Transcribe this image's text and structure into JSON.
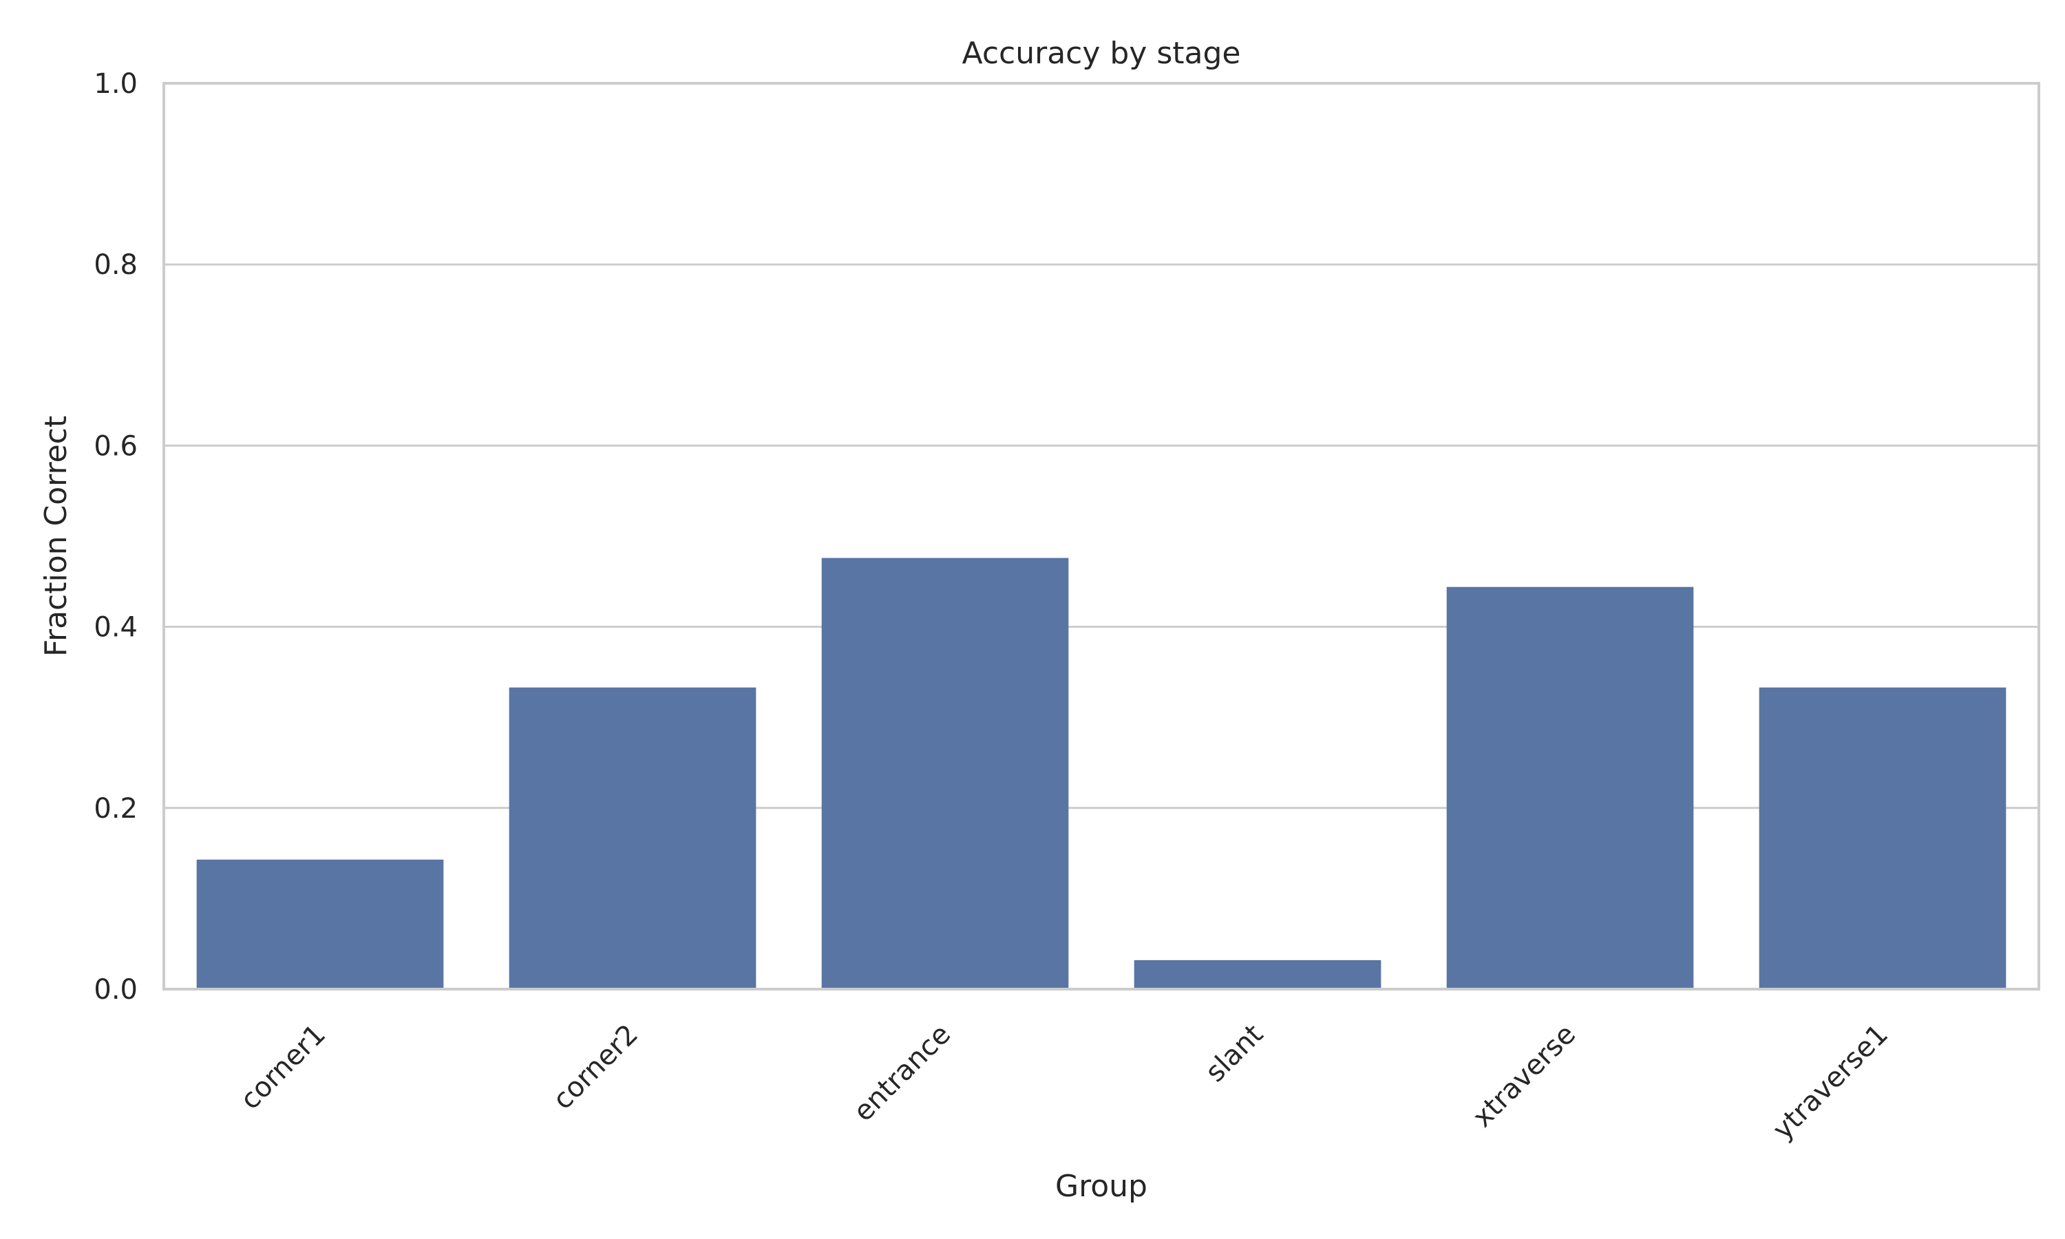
{
  "chart_data": {
    "type": "bar",
    "title": "Accuracy by stage",
    "xlabel": "Group",
    "ylabel": "Fraction Correct",
    "categories": [
      "corner1",
      "corner2",
      "entrance",
      "slant",
      "xtraverse",
      "ytraverse1"
    ],
    "values": [
      0.143,
      0.333,
      0.476,
      0.032,
      0.444,
      0.333
    ],
    "ylim": [
      0,
      1.0
    ],
    "yticks": [
      "0.0",
      "0.2",
      "0.4",
      "0.6",
      "0.8",
      "1.0"
    ],
    "grid": true,
    "bar_color": "#5975a4"
  }
}
